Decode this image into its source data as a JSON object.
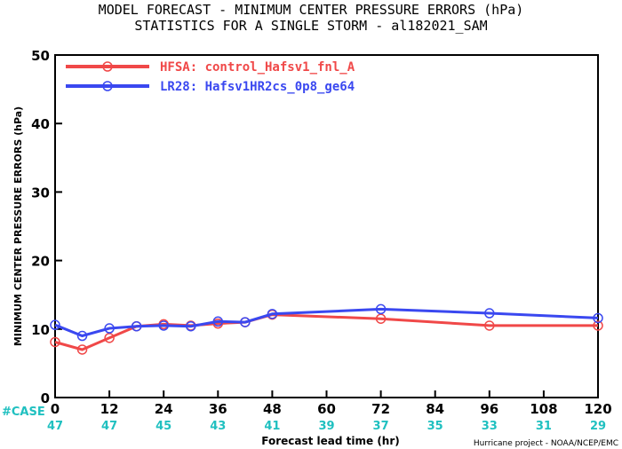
{
  "chart_data": {
    "type": "line",
    "title_line1": "MODEL FORECAST - MINIMUM CENTER PRESSURE ERRORS (hPa)",
    "title_line2": "STATISTICS FOR A SINGLE STORM - al182021_SAM",
    "ylabel": "MINIMUM CENTER PRESSURE ERRORS (hPa)",
    "xlabel": "Forecast lead time (hr)",
    "xlim": [
      0,
      120
    ],
    "ylim": [
      0,
      50
    ],
    "xticks": [
      0,
      12,
      24,
      36,
      48,
      60,
      72,
      84,
      96,
      108,
      120
    ],
    "yticks": [
      0,
      10,
      20,
      30,
      40,
      50
    ],
    "grid": false,
    "legend_position": "top-left",
    "series": [
      {
        "name": "HFSA: control_Hafsv1_fnl_A",
        "color": "#f04848",
        "x": [
          0,
          6,
          12,
          18,
          24,
          30,
          36,
          42,
          48,
          72,
          96,
          120
        ],
        "y": [
          8.1,
          7.0,
          8.7,
          10.4,
          10.7,
          10.5,
          10.8,
          11.0,
          12.1,
          11.5,
          10.5,
          10.5
        ]
      },
      {
        "name": "LR28: Hafsv1HR2cs_0p8_ge64",
        "color": "#3a48f0",
        "x": [
          0,
          6,
          12,
          18,
          24,
          30,
          36,
          42,
          48,
          72,
          96,
          120
        ],
        "y": [
          10.6,
          9.0,
          10.1,
          10.4,
          10.5,
          10.4,
          11.1,
          11.0,
          12.2,
          12.9,
          12.3,
          11.6
        ]
      }
    ],
    "case_label": "#CASE",
    "case_color": "#20c0c0",
    "cases": [
      {
        "x": 0,
        "n": "47"
      },
      {
        "x": 12,
        "n": "47"
      },
      {
        "x": 24,
        "n": "45"
      },
      {
        "x": 36,
        "n": "43"
      },
      {
        "x": 48,
        "n": "41"
      },
      {
        "x": 60,
        "n": "39"
      },
      {
        "x": 72,
        "n": "37"
      },
      {
        "x": 84,
        "n": "35"
      },
      {
        "x": 96,
        "n": "33"
      },
      {
        "x": 108,
        "n": "31"
      },
      {
        "x": 120,
        "n": "29"
      }
    ],
    "credit": "Hurricane project - NOAA/NCEP/EMC"
  }
}
